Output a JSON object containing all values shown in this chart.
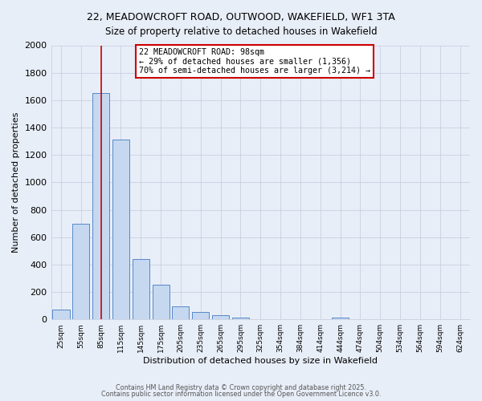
{
  "title_line1": "22, MEADOWCROFT ROAD, OUTWOOD, WAKEFIELD, WF1 3TA",
  "title_line2": "Size of property relative to detached houses in Wakefield",
  "xlabel": "Distribution of detached houses by size in Wakefield",
  "ylabel": "Number of detached properties",
  "categories": [
    "25sqm",
    "55sqm",
    "85sqm",
    "115sqm",
    "145sqm",
    "175sqm",
    "205sqm",
    "235sqm",
    "265sqm",
    "295sqm",
    "325sqm",
    "354sqm",
    "384sqm",
    "414sqm",
    "444sqm",
    "474sqm",
    "504sqm",
    "534sqm",
    "564sqm",
    "594sqm",
    "624sqm"
  ],
  "values": [
    70,
    700,
    1650,
    1310,
    440,
    250,
    95,
    55,
    30,
    15,
    0,
    0,
    0,
    0,
    12,
    0,
    0,
    0,
    0,
    0,
    0
  ],
  "bar_color": "#c5d8f0",
  "bar_edge_color": "#5588c8",
  "background_color": "#e8eef8",
  "vline_x": 2,
  "vline_color": "#cc0000",
  "annotation_text_line1": "22 MEADOWCROFT ROAD: 98sqm",
  "annotation_text_line2": "← 29% of detached houses are smaller (1,356)",
  "annotation_text_line3": "70% of semi-detached houses are larger (3,214) →",
  "annotation_box_color": "#ffffff",
  "annotation_box_edge": "#cc0000",
  "ylim": [
    0,
    2000
  ],
  "yticks": [
    0,
    200,
    400,
    600,
    800,
    1000,
    1200,
    1400,
    1600,
    1800,
    2000
  ],
  "footnote1": "Contains HM Land Registry data © Crown copyright and database right 2025.",
  "footnote2": "Contains public sector information licensed under the Open Government Licence v3.0.",
  "grid_color": "#c8d0e0",
  "title1_fontsize": 9.0,
  "title2_fontsize": 8.5,
  "xlabel_fontsize": 8.0,
  "ylabel_fontsize": 8.0,
  "xtick_fontsize": 6.5,
  "ytick_fontsize": 8.0,
  "annot_fontsize": 7.2,
  "footnote_fontsize": 5.8
}
